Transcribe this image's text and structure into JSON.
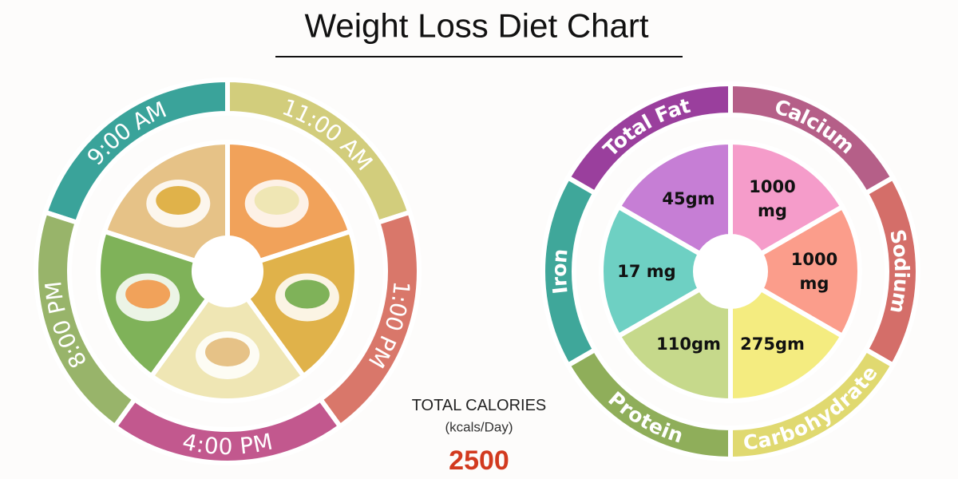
{
  "title": "Weight Loss Diet Chart",
  "meal_schedule": {
    "times": [
      "9:00 AM",
      "11:00 AM",
      "1:00 PM",
      "4:00 PM",
      "8:00 PM"
    ]
  },
  "nutrients": [
    {
      "name": "Total Fat",
      "amount": [
        "45gm"
      ]
    },
    {
      "name": "Calcium",
      "amount": [
        "1000",
        "mg"
      ]
    },
    {
      "name": "Sodium",
      "amount": [
        "1000",
        "mg"
      ]
    },
    {
      "name": "Carbohydrate",
      "amount": [
        "275gm"
      ]
    },
    {
      "name": "Protein",
      "amount": [
        "110gm"
      ]
    },
    {
      "name": "Iron",
      "amount": [
        "17 mg"
      ]
    }
  ],
  "total_calories": {
    "label": "TOTAL CALORIES",
    "unit": "(kcals/Day)",
    "value": 2500
  }
}
